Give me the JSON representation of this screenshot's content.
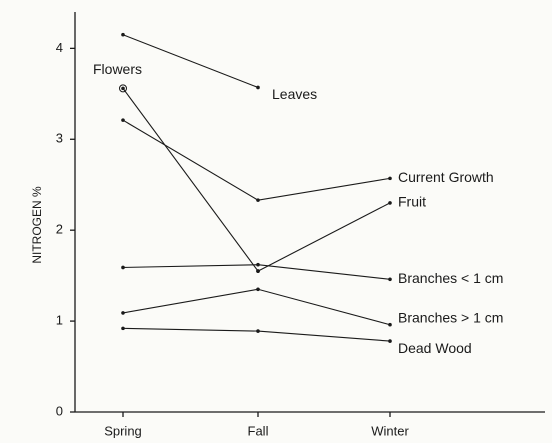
{
  "chart_data": {
    "type": "line",
    "y_label": "NITROGEN %",
    "categories": [
      "Spring",
      "Fall",
      "Winter"
    ],
    "ylim": [
      0,
      4.4
    ],
    "yticks": [
      0,
      1,
      2,
      3,
      4
    ],
    "grid": false,
    "series": [
      {
        "name": "Leaves",
        "color": "#1a1a1a",
        "values": [
          4.15,
          3.57,
          null
        ]
      },
      {
        "name": "Flowers",
        "color": "#1a1a1a",
        "values": [
          3.56,
          1.55,
          null
        ]
      },
      {
        "name": "Current Growth",
        "color": "#1a1a1a",
        "values": [
          3.21,
          2.33,
          2.57
        ]
      },
      {
        "name": "Fruit",
        "color": "#1a1a1a",
        "values": [
          null,
          1.55,
          2.3
        ]
      },
      {
        "name": "Branches < 1 cm",
        "color": "#1a1a1a",
        "values": [
          1.59,
          1.62,
          1.46
        ]
      },
      {
        "name": "Branches > 1 cm",
        "color": "#1a1a1a",
        "values": [
          1.09,
          1.35,
          0.96
        ]
      },
      {
        "name": "Dead Wood",
        "color": "#1a1a1a",
        "values": [
          0.92,
          0.89,
          0.78
        ]
      }
    ]
  }
}
